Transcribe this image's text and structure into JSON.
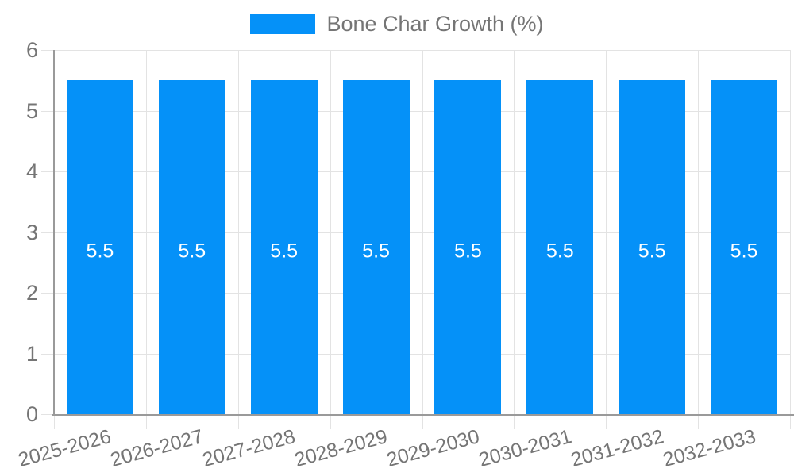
{
  "chart_data": {
    "type": "bar",
    "title": "Bone Char Growth (%)",
    "categories": [
      "2025-2026",
      "2026-2027",
      "2027-2028",
      "2028-2029",
      "2029-2030",
      "2030-2031",
      "2031-2032",
      "2032-2033"
    ],
    "series": [
      {
        "name": "Bone Char Growth (%)",
        "values": [
          5.5,
          5.5,
          5.5,
          5.5,
          5.5,
          5.5,
          5.5,
          5.5
        ],
        "value_labels": [
          "5.5",
          "5.5",
          "5.5",
          "5.5",
          "5.5",
          "5.5",
          "5.5",
          "5.5"
        ]
      }
    ],
    "xlabel": "",
    "ylabel": "",
    "ylim": [
      0,
      6
    ],
    "yticks": [
      0,
      1,
      2,
      3,
      4,
      5,
      6
    ],
    "grid": true,
    "legend_position": "top",
    "colors": {
      "bar": "#0591f8",
      "grid": "#e3e3e3",
      "axis": "#9a9a9a",
      "tick_text": "#757575",
      "value_text": "#ffffff"
    }
  }
}
